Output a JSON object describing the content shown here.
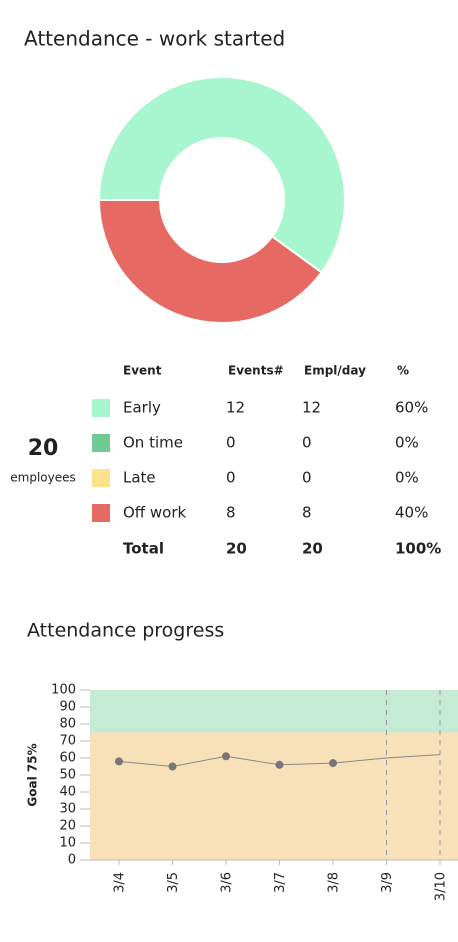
{
  "chart_data": [
    {
      "type": "donut",
      "title": "Attendance - work started",
      "categories": [
        "Early",
        "On time",
        "Late",
        "Off work"
      ],
      "values": [
        12,
        0,
        0,
        8
      ],
      "colors": [
        "#a8f6cf",
        "#6fcb92",
        "#fde28c",
        "#e66a63"
      ]
    },
    {
      "type": "line",
      "title": "Attendance progress",
      "y_label": "Goal 75%",
      "categories": [
        "3/4",
        "3/5",
        "3/6",
        "3/7",
        "3/8",
        "3/9",
        "3/10"
      ],
      "values": [
        58,
        55,
        61,
        56,
        57,
        null,
        null
      ],
      "projection": [
        null,
        null,
        null,
        null,
        57,
        60,
        62
      ],
      "goal": 75,
      "goal_color": "#c6ebd4",
      "below_goal_color": "#f8e1b9",
      "line_color": "#888",
      "ylim": [
        0,
        100
      ],
      "yticks": [
        0,
        10,
        20,
        30,
        40,
        50,
        60,
        70,
        80,
        90,
        100
      ]
    }
  ],
  "summary": {
    "count": "20",
    "label": "employees"
  },
  "table": {
    "columns": [
      "Event",
      "Events#",
      "Empl/day",
      "%"
    ],
    "empl_per_day": [
      12,
      0,
      0,
      8
    ],
    "percent": [
      "60%",
      "0%",
      "0%",
      "40%"
    ],
    "total": {
      "label": "Total",
      "events": "20",
      "empl": "20",
      "percent": "100%"
    }
  }
}
